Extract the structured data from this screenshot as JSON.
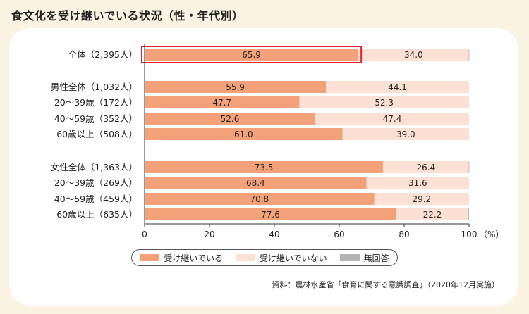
{
  "title": "食文化を受け継いでいる状況（性・年代別）",
  "colors": {
    "inherit": "#f3a178",
    "not_inherit": "#fbe0d3",
    "no_answer": "#b3b3b3",
    "highlight": "#e0232b",
    "axis": "#333333",
    "background": "#fbf3e1"
  },
  "legend": [
    {
      "label": "受け継いでいる",
      "color": "#f3a178"
    },
    {
      "label": "受け継いでいない",
      "color": "#fbe0d3"
    },
    {
      "label": "無回答",
      "color": "#b3b3b3"
    }
  ],
  "source": "資料：農林水産省「食育に関する意識調査」（2020年12月実施）",
  "chart_data": {
    "type": "bar",
    "orientation": "horizontal",
    "stacked": true,
    "title": "食文化を受け継いでいる状況（性・年代別）",
    "xlim": [
      0,
      100
    ],
    "xticks": [
      "0",
      "20",
      "40",
      "60",
      "80",
      "100"
    ],
    "xunit": "（%）",
    "categories": [
      "全体（2,395人）",
      "男性全体（1,032人）",
      "20～39歳（172人）",
      "40～59歳（352人）",
      "60歳以上（508人）",
      "女性全体（1,363人）",
      "20～39歳（269人）",
      "40～59歳（459人）",
      "60歳以上（635人）"
    ],
    "groups": [
      0,
      1,
      1,
      1,
      1,
      2,
      2,
      2,
      2
    ],
    "highlighted_category": 0,
    "series": [
      {
        "name": "受け継いでいる",
        "values": [
          65.9,
          55.9,
          47.7,
          52.6,
          61.0,
          73.5,
          68.4,
          70.8,
          77.6
        ],
        "labels": [
          "65.9",
          "55.9",
          "47.7",
          "52.6",
          "61.0",
          "73.5",
          "68.4",
          "70.8",
          "77.6"
        ]
      },
      {
        "name": "受け継いでいない",
        "values": [
          34.0,
          44.1,
          52.3,
          47.4,
          39.0,
          26.4,
          31.6,
          29.2,
          22.2
        ],
        "labels": [
          "34.0",
          "44.1",
          "52.3",
          "47.4",
          "39.0",
          "26.4",
          "31.6",
          "29.2",
          "22.2"
        ]
      },
      {
        "name": "無回答",
        "values": [
          0.1,
          0.0,
          0.0,
          0.0,
          0.0,
          0.1,
          0.0,
          0.0,
          0.2
        ],
        "labels": []
      }
    ]
  }
}
